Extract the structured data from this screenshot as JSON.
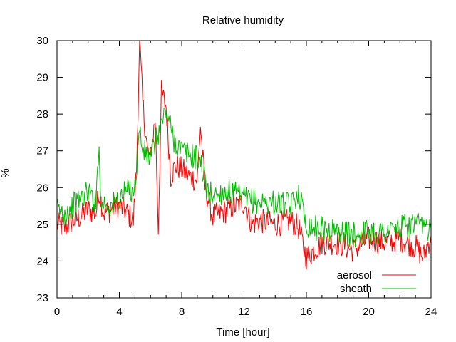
{
  "chart_data": {
    "type": "line",
    "title": "Relative humidity",
    "xlabel": "Time [hour]",
    "ylabel": "%",
    "xlim": [
      0,
      24
    ],
    "ylim": [
      23,
      30
    ],
    "xticks": [
      "0",
      "4",
      "8",
      "12",
      "16",
      "20",
      "24"
    ],
    "yticks": [
      "23",
      "24",
      "25",
      "26",
      "27",
      "28",
      "29",
      "30"
    ],
    "grid": false,
    "legend_position": "bottom-right",
    "series": [
      {
        "name": "aerosol",
        "color": "#ff0000",
        "x": [
          0,
          0.5,
          1,
          1.5,
          2,
          2.5,
          2.7,
          3,
          3.5,
          4,
          4.5,
          4.9,
          5.1,
          5.3,
          5.5,
          5.8,
          6.0,
          6.3,
          6.5,
          6.7,
          7.0,
          7.3,
          7.6,
          8.0,
          8.5,
          9.0,
          9.2,
          9.5,
          10,
          11,
          12,
          12.5,
          13,
          14,
          15,
          15.5,
          16,
          16.5,
          17,
          18,
          19,
          20,
          21,
          22,
          23,
          23.5,
          24
        ],
        "y": [
          25.0,
          24.9,
          25.1,
          25.2,
          25.4,
          25.3,
          25.9,
          25.3,
          25.4,
          25.5,
          25.3,
          25.1,
          26.5,
          30.0,
          28.3,
          27.0,
          26.8,
          27.9,
          24.9,
          28.6,
          28.2,
          26.3,
          26.6,
          26.5,
          26.3,
          26.2,
          27.7,
          26.0,
          25.2,
          25.4,
          25.6,
          25.0,
          25.1,
          25.0,
          25.1,
          24.9,
          24.1,
          24.3,
          24.5,
          24.5,
          24.3,
          24.6,
          24.5,
          24.6,
          24.4,
          24.1,
          24.7
        ]
      },
      {
        "name": "sheath",
        "color": "#00bb00",
        "x": [
          0,
          0.5,
          1,
          1.5,
          2,
          2.5,
          2.7,
          2.8,
          3,
          3.5,
          4,
          4.5,
          5.0,
          5.3,
          5.5,
          6.0,
          6.5,
          7.0,
          7.5,
          8.0,
          8.5,
          9.0,
          9.3,
          9.6,
          10,
          11,
          12,
          13,
          14,
          15,
          15.5,
          16,
          16.5,
          17,
          18,
          19,
          20,
          21,
          22,
          23,
          23.5,
          24
        ],
        "y": [
          25.4,
          25.3,
          25.5,
          25.7,
          25.9,
          25.6,
          27.4,
          25.5,
          25.6,
          25.5,
          25.7,
          25.9,
          26.0,
          27.6,
          27.0,
          26.8,
          27.5,
          28.1,
          27.3,
          27.0,
          26.9,
          26.8,
          26.6,
          25.9,
          25.8,
          25.9,
          25.7,
          25.6,
          25.6,
          25.5,
          25.9,
          25.0,
          24.9,
          24.9,
          24.8,
          24.7,
          24.8,
          24.8,
          24.9,
          25.0,
          24.9,
          24.9
        ]
      }
    ]
  }
}
